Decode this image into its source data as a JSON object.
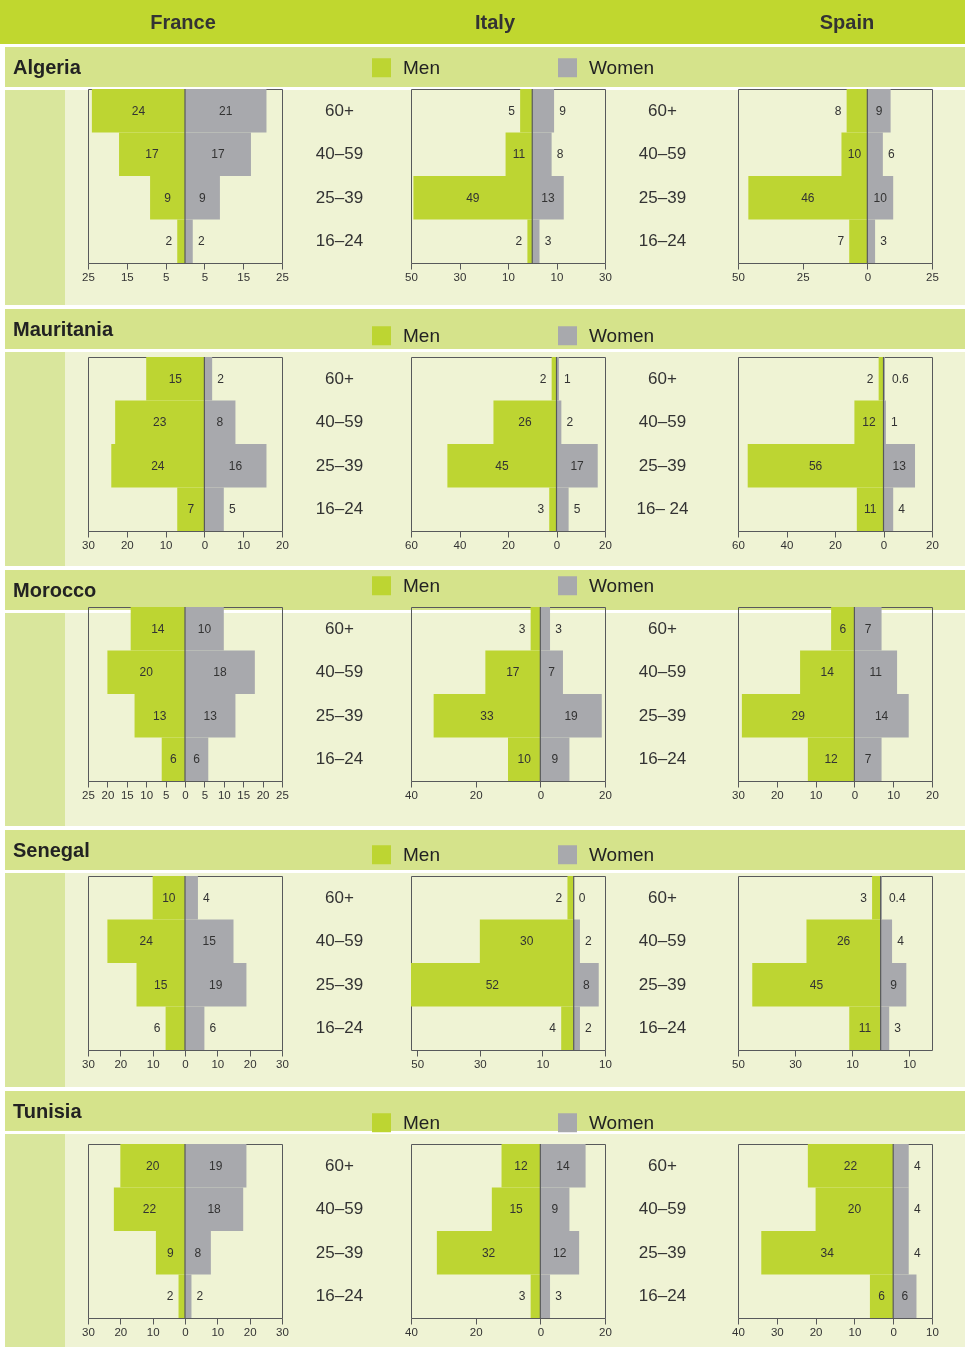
{
  "chart_data": [
    {
      "type": "other",
      "annotations": [
        "France",
        "Italy",
        "Spain"
      ]
    },
    {
      "type": "bar",
      "orientation": "horizontal",
      "title": "Algeria",
      "categories": [
        "60+",
        "40–59",
        "25–39",
        "16–24"
      ],
      "data_labels": true,
      "series": [
        {
          "color": "#bdd532",
          "values": [
            24,
            17,
            9,
            2
          ],
          "base": [
            -24,
            -17,
            -9,
            -2
          ]
        },
        {
          "color": "#a8a9ad",
          "values": [
            21,
            17,
            9,
            2
          ]
        }
      ],
      "xlim": [
        -25,
        25
      ],
      "xticks": [
        {
          "value": -25,
          "label": "25"
        },
        {
          "value": -15,
          "label": "15"
        },
        {
          "value": -5,
          "label": "5"
        },
        5,
        15,
        25
      ],
      "ref_lines": [
        {
          "axis": "x",
          "value": 0,
          "color": "#58595b"
        }
      ]
    },
    {
      "type": "bar",
      "orientation": "horizontal",
      "legend": "top",
      "categories": [
        "60+",
        "40–59",
        "25–39",
        "16–24"
      ],
      "data_labels": true,
      "series": [
        {
          "name": "Men",
          "color": "#bdd532",
          "values": [
            5,
            11,
            49,
            2
          ],
          "base": [
            -5,
            -11,
            -49,
            -2
          ]
        },
        {
          "name": "Women",
          "color": "#a8a9ad",
          "values": [
            9,
            8,
            13,
            3
          ]
        }
      ],
      "xlim": [
        -50,
        30
      ],
      "xticks": [
        {
          "value": -50,
          "label": "50"
        },
        {
          "value": -30,
          "label": "30"
        },
        {
          "value": -10,
          "label": "10"
        },
        10,
        30
      ],
      "ref_lines": [
        {
          "axis": "x",
          "value": 0,
          "color": "#58595b"
        }
      ]
    },
    {
      "type": "bar",
      "orientation": "horizontal",
      "tick_labels": "x",
      "categories": [
        null,
        null,
        null,
        null
      ],
      "data_labels": true,
      "series": [
        {
          "color": "#bdd532",
          "values": [
            8,
            10,
            46,
            7
          ],
          "base": [
            -8,
            -10,
            -46,
            -7
          ]
        },
        {
          "color": "#a8a9ad",
          "values": [
            9,
            6,
            10,
            3
          ]
        }
      ],
      "xlim": [
        -50,
        25
      ],
      "xticks": [
        {
          "value": -50,
          "label": "50"
        },
        {
          "value": -25,
          "label": "25"
        },
        0,
        25
      ],
      "ref_lines": [
        {
          "axis": "x",
          "value": 0,
          "color": "#58595b"
        }
      ]
    },
    {
      "type": "bar",
      "orientation": "horizontal",
      "title": "Mauritania",
      "categories": [
        "60+",
        "40–59",
        "25–39",
        "16–24"
      ],
      "data_labels": true,
      "series": [
        {
          "color": "#bdd532",
          "values": [
            15,
            23,
            24,
            7
          ],
          "base": [
            -15,
            -23,
            -24,
            -7
          ]
        },
        {
          "color": "#a8a9ad",
          "values": [
            2,
            8,
            16,
            5
          ]
        }
      ],
      "xlim": [
        -30,
        20
      ],
      "xticks": [
        {
          "value": -30,
          "label": "30"
        },
        {
          "value": -20,
          "label": "20"
        },
        {
          "value": -10,
          "label": "10"
        },
        0,
        10,
        20
      ],
      "ref_lines": [
        {
          "axis": "x",
          "value": 0,
          "color": "#58595b"
        }
      ]
    },
    {
      "type": "bar",
      "orientation": "horizontal",
      "legend": "top",
      "categories": [
        "60+",
        "40–59",
        "25–39",
        "16– 24"
      ],
      "data_labels": true,
      "series": [
        {
          "name": "Men",
          "color": "#bdd532",
          "values": [
            2,
            26,
            45,
            3
          ],
          "base": [
            -2,
            -26,
            -45,
            -3
          ]
        },
        {
          "name": "Women",
          "color": "#a8a9ad",
          "values": [
            1,
            2,
            17,
            5
          ]
        }
      ],
      "xlim": [
        -60,
        20
      ],
      "xticks": [
        {
          "value": -60,
          "label": "60"
        },
        {
          "value": -40,
          "label": "40"
        },
        {
          "value": -20,
          "label": "20"
        },
        0,
        20
      ],
      "ref_lines": [
        {
          "axis": "x",
          "value": 0,
          "color": "#58595b"
        }
      ]
    },
    {
      "type": "bar",
      "orientation": "horizontal",
      "tick_labels": "x",
      "categories": [
        null,
        null,
        null,
        null
      ],
      "data_labels": true,
      "series": [
        {
          "color": "#bdd532",
          "values": [
            2,
            12,
            56,
            11
          ],
          "base": [
            -2,
            -12,
            -56,
            -11
          ]
        },
        {
          "color": "#a8a9ad",
          "values": [
            0.6,
            1,
            13,
            4
          ]
        }
      ],
      "xlim": [
        -60,
        20
      ],
      "xticks": [
        {
          "value": -60,
          "label": "60"
        },
        {
          "value": -40,
          "label": "40"
        },
        {
          "value": -20,
          "label": "20"
        },
        0,
        20
      ],
      "ref_lines": [
        {
          "axis": "x",
          "value": 0,
          "color": "#58595b"
        }
      ]
    },
    {
      "type": "bar",
      "orientation": "horizontal",
      "title": "Morocco",
      "categories": [
        "60+",
        "40–59",
        "25–39",
        "16–24"
      ],
      "data_labels": true,
      "series": [
        {
          "color": "#bdd532",
          "values": [
            14,
            20,
            13,
            6
          ],
          "base": [
            -14,
            -20,
            -13,
            -6
          ]
        },
        {
          "color": "#a8a9ad",
          "values": [
            10,
            18,
            13,
            6
          ]
        }
      ],
      "xlim": [
        -25,
        25
      ],
      "xticks": [
        {
          "value": -25,
          "label": "25"
        },
        {
          "value": -20,
          "label": "20"
        },
        {
          "value": -15,
          "label": "15"
        },
        {
          "value": -10,
          "label": "10"
        },
        {
          "value": -5,
          "label": "5"
        },
        0,
        5,
        10,
        15,
        20,
        25
      ],
      "ref_lines": [
        {
          "axis": "x",
          "value": 0,
          "color": "#58595b"
        }
      ]
    },
    {
      "type": "bar",
      "orientation": "horizontal",
      "legend": "top",
      "categories": [
        "60+",
        "40–59",
        "25–39",
        "16–24"
      ],
      "data_labels": true,
      "series": [
        {
          "name": "Men",
          "color": "#bdd532",
          "values": [
            3,
            17,
            33,
            10
          ],
          "base": [
            -3,
            -17,
            -33,
            -10
          ]
        },
        {
          "name": "Women",
          "color": "#a8a9ad",
          "values": [
            3,
            7,
            19,
            9
          ]
        }
      ],
      "xlim": [
        -40,
        20
      ],
      "xticks": [
        {
          "value": -40,
          "label": "40"
        },
        {
          "value": -20,
          "label": "20"
        },
        0,
        20
      ],
      "ref_lines": [
        {
          "axis": "x",
          "value": 0,
          "color": "#58595b"
        }
      ]
    },
    {
      "type": "bar",
      "orientation": "horizontal",
      "tick_labels": "x",
      "categories": [
        null,
        null,
        null,
        null
      ],
      "data_labels": true,
      "series": [
        {
          "color": "#bdd532",
          "values": [
            6,
            14,
            29,
            12
          ],
          "base": [
            -6,
            -14,
            -29,
            -12
          ]
        },
        {
          "color": "#a8a9ad",
          "values": [
            7,
            11,
            14,
            7
          ]
        }
      ],
      "xlim": [
        -30,
        20
      ],
      "xticks": [
        {
          "value": -30,
          "label": "30"
        },
        {
          "value": -20,
          "label": "20"
        },
        {
          "value": -10,
          "label": "10"
        },
        0,
        10,
        20
      ],
      "ref_lines": [
        {
          "axis": "x",
          "value": 0,
          "color": "#58595b"
        }
      ]
    },
    {
      "type": "bar",
      "orientation": "horizontal",
      "title": "Senegal",
      "categories": [
        "60+",
        "40–59",
        "25–39",
        "16–24"
      ],
      "data_labels": true,
      "series": [
        {
          "color": "#bdd532",
          "values": [
            10,
            24,
            15,
            6
          ],
          "base": [
            -10,
            -24,
            -15,
            -6
          ]
        },
        {
          "color": "#a8a9ad",
          "values": [
            4,
            15,
            19,
            6
          ]
        }
      ],
      "xlim": [
        -30,
        30
      ],
      "xticks": [
        {
          "value": -30,
          "label": "30"
        },
        {
          "value": -20,
          "label": "20"
        },
        {
          "value": -10,
          "label": "10"
        },
        0,
        10,
        20,
        30
      ],
      "ref_lines": [
        {
          "axis": "x",
          "value": 0,
          "color": "#58595b"
        }
      ]
    },
    {
      "type": "bar",
      "orientation": "horizontal",
      "legend": "top",
      "categories": [
        "60+",
        "40–59",
        "25–39",
        "16–24"
      ],
      "data_labels": true,
      "series": [
        {
          "name": "Men",
          "color": "#bdd532",
          "values": [
            2,
            30,
            52,
            4
          ],
          "base": [
            -2,
            -30,
            -52,
            -4
          ]
        },
        {
          "name": "Women",
          "color": "#a8a9ad",
          "values": [
            0,
            2,
            8,
            2
          ]
        }
      ],
      "xlim": [
        -52,
        10
      ],
      "xticks": [
        {
          "value": -50,
          "label": "50"
        },
        {
          "value": -30,
          "label": "30"
        },
        {
          "value": -10,
          "label": "10"
        },
        10
      ],
      "ref_lines": [
        {
          "axis": "x",
          "value": 0,
          "color": "#58595b"
        }
      ]
    },
    {
      "type": "bar",
      "orientation": "horizontal",
      "tick_labels": "x",
      "categories": [
        null,
        null,
        null,
        null
      ],
      "data_labels": true,
      "series": [
        {
          "color": "#bdd532",
          "values": [
            3,
            26,
            45,
            11
          ],
          "base": [
            -3,
            -26,
            -45,
            -11
          ]
        },
        {
          "color": "#a8a9ad",
          "values": [
            0.4,
            4,
            9,
            3
          ]
        }
      ],
      "xlim": [
        -50,
        18
      ],
      "xticks": [
        {
          "value": -50,
          "label": "50"
        },
        {
          "value": -30,
          "label": "30"
        },
        {
          "value": -10,
          "label": "10"
        },
        10
      ],
      "ref_lines": [
        {
          "axis": "x",
          "value": 0,
          "color": "#58595b"
        }
      ]
    },
    {
      "type": "bar",
      "orientation": "horizontal",
      "title": "Tunisia",
      "categories": [
        "60+",
        "40–59",
        "25–39",
        "16–24"
      ],
      "data_labels": true,
      "series": [
        {
          "color": "#bdd532",
          "values": [
            20,
            22,
            9,
            2
          ],
          "base": [
            -20,
            -22,
            -9,
            -2
          ]
        },
        {
          "color": "#a8a9ad",
          "values": [
            19,
            18,
            8,
            2
          ]
        }
      ],
      "xlim": [
        -30,
        30
      ],
      "xticks": [
        {
          "value": -30,
          "label": "30"
        },
        {
          "value": -20,
          "label": "20"
        },
        {
          "value": -10,
          "label": "10"
        },
        0,
        10,
        20,
        30
      ],
      "ref_lines": [
        {
          "axis": "x",
          "value": 0,
          "color": "#58595b"
        }
      ]
    },
    {
      "type": "bar",
      "orientation": "horizontal",
      "legend": "top",
      "categories": [
        "60+",
        "40–59",
        "25–39",
        "16–24"
      ],
      "data_labels": true,
      "series": [
        {
          "name": "Men",
          "color": "#bdd532",
          "values": [
            12,
            15,
            32,
            3
          ],
          "base": [
            -12,
            -15,
            -32,
            -3
          ]
        },
        {
          "name": "Women",
          "color": "#a8a9ad",
          "values": [
            14,
            9,
            12,
            3
          ]
        }
      ],
      "xlim": [
        -40,
        20
      ],
      "xticks": [
        {
          "value": -40,
          "label": "40"
        },
        {
          "value": -20,
          "label": "20"
        },
        0,
        20
      ],
      "ref_lines": [
        {
          "axis": "x",
          "value": 0,
          "color": "#58595b"
        }
      ]
    },
    {
      "type": "bar",
      "orientation": "horizontal",
      "tick_labels": "x",
      "categories": [
        null,
        null,
        null,
        null
      ],
      "data_labels": true,
      "series": [
        {
          "color": "#bdd532",
          "values": [
            22,
            20,
            34,
            6
          ],
          "base": [
            -22,
            -20,
            -34,
            -6
          ]
        },
        {
          "color": "#a8a9ad",
          "values": [
            4,
            4,
            4,
            6
          ]
        }
      ],
      "xlim": [
        -40,
        10
      ],
      "xticks": [
        {
          "value": -40,
          "label": "40"
        },
        {
          "value": -30,
          "label": "30"
        },
        {
          "value": -20,
          "label": "20"
        },
        {
          "value": -10,
          "label": "10"
        },
        0,
        10
      ],
      "ref_lines": [
        {
          "axis": "x",
          "value": 0,
          "color": "#58595b"
        }
      ]
    }
  ]
}
